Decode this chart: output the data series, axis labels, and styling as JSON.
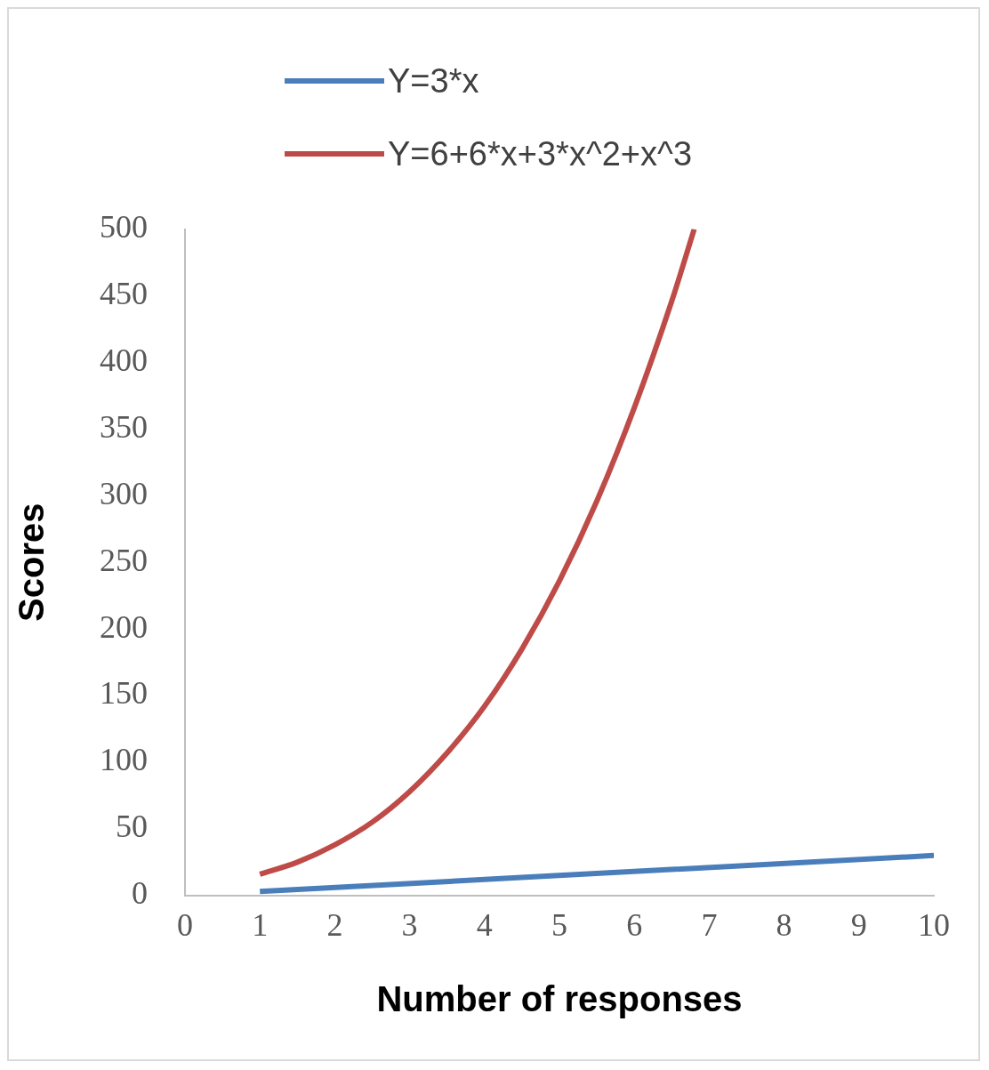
{
  "chart_data": {
    "type": "line",
    "xlabel": "Number of responses",
    "ylabel": "Scores",
    "xlim": [
      0,
      10
    ],
    "xticks": [
      0,
      1,
      2,
      3,
      4,
      5,
      6,
      7,
      8,
      9,
      10
    ],
    "ylim": [
      0,
      500
    ],
    "yticks": [
      0,
      50,
      100,
      150,
      200,
      250,
      300,
      350,
      400,
      450,
      500
    ],
    "grid": false,
    "legend": "top",
    "marker": "none",
    "line_style": "solid",
    "series": [
      {
        "name": "Y=3*x",
        "color": "#4a7ebb",
        "x": [
          1,
          10
        ],
        "values": [
          3,
          30
        ]
      },
      {
        "name": "Y=6+6*x+3*x^2+x^3",
        "color": "#be4b48",
        "x": [
          1,
          1.5,
          2,
          2.5,
          3,
          3.5,
          4,
          4.5,
          5,
          5.5,
          6,
          6.5,
          6.8
        ],
        "values": [
          16,
          25,
          38,
          55,
          78,
          107,
          142,
          185,
          236,
          296,
          366,
          446,
          500
        ]
      }
    ]
  }
}
